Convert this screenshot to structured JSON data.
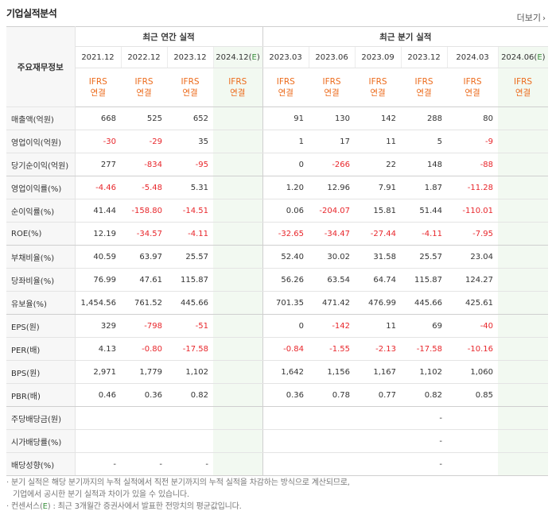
{
  "header": {
    "title": "기업실적분석",
    "more_label": "더보기",
    "more_icon": "chevron-right"
  },
  "table": {
    "row_header_label": "주요재무정보",
    "annual_group_label": "최근 연간 실적",
    "quarter_group_label": "최근 분기 실적",
    "periods": [
      "2021.12",
      "2022.12",
      "2023.12",
      "2024.12(E)",
      "2023.03",
      "2023.06",
      "2023.09",
      "2023.12",
      "2024.03",
      "2024.06(E)"
    ],
    "ifrs_label": "IFRS",
    "basis_label": "연결",
    "rows": [
      {
        "label": "매출액(억원)",
        "values": [
          "668",
          "525",
          "652",
          "",
          "91",
          "130",
          "142",
          "288",
          "80",
          ""
        ]
      },
      {
        "label": "영업이익(억원)",
        "values": [
          "-30",
          "-29",
          "35",
          "",
          "1",
          "17",
          "11",
          "5",
          "-9",
          ""
        ]
      },
      {
        "label": "당기순이익(억원)",
        "values": [
          "277",
          "-834",
          "-95",
          "",
          "0",
          "-266",
          "22",
          "148",
          "-88",
          ""
        ]
      },
      {
        "label": "영업이익률(%)",
        "values": [
          "-4.46",
          "-5.48",
          "5.31",
          "",
          "1.20",
          "12.96",
          "7.91",
          "1.87",
          "-11.28",
          ""
        ]
      },
      {
        "label": "순이익률(%)",
        "values": [
          "41.44",
          "-158.80",
          "-14.51",
          "",
          "0.06",
          "-204.07",
          "15.81",
          "51.44",
          "-110.01",
          ""
        ]
      },
      {
        "label": "ROE(%)",
        "values": [
          "12.19",
          "-34.57",
          "-4.11",
          "",
          "-32.65",
          "-34.47",
          "-27.44",
          "-4.11",
          "-7.95",
          ""
        ]
      },
      {
        "label": "부채비율(%)",
        "values": [
          "40.59",
          "63.97",
          "25.57",
          "",
          "52.40",
          "30.02",
          "31.58",
          "25.57",
          "23.04",
          ""
        ]
      },
      {
        "label": "당좌비율(%)",
        "values": [
          "76.99",
          "47.61",
          "115.87",
          "",
          "56.26",
          "63.54",
          "64.74",
          "115.87",
          "124.27",
          ""
        ]
      },
      {
        "label": "유보율(%)",
        "values": [
          "1,454.56",
          "761.52",
          "445.66",
          "",
          "701.35",
          "471.42",
          "476.99",
          "445.66",
          "425.61",
          ""
        ]
      },
      {
        "label": "EPS(원)",
        "values": [
          "329",
          "-798",
          "-51",
          "",
          "0",
          "-142",
          "11",
          "69",
          "-40",
          ""
        ]
      },
      {
        "label": "PER(배)",
        "values": [
          "4.13",
          "-0.80",
          "-17.58",
          "",
          "-0.84",
          "-1.55",
          "-2.13",
          "-17.58",
          "-10.16",
          ""
        ]
      },
      {
        "label": "BPS(원)",
        "values": [
          "2,971",
          "1,779",
          "1,102",
          "",
          "1,642",
          "1,156",
          "1,167",
          "1,102",
          "1,060",
          ""
        ]
      },
      {
        "label": "PBR(배)",
        "values": [
          "0.46",
          "0.36",
          "0.82",
          "",
          "0.36",
          "0.78",
          "0.77",
          "0.82",
          "0.85",
          ""
        ]
      },
      {
        "label": "주당배당금(원)",
        "values": [
          "",
          "",
          "",
          "",
          "",
          "",
          "",
          "-",
          "",
          ""
        ]
      },
      {
        "label": "시가배당률(%)",
        "values": [
          "",
          "",
          "",
          "",
          "",
          "",
          "",
          "-",
          "",
          ""
        ]
      },
      {
        "label": "배당성향(%)",
        "values": [
          "-",
          "-",
          "-",
          "",
          "",
          "",
          "",
          "-",
          "",
          ""
        ]
      }
    ]
  },
  "notes": {
    "line1": "· 분기 실적은 해당 분기까지의 누적 실적에서 직전 분기까지의 누적 실적을 차감하는 방식으로 계산되므로,",
    "line2": "기업에서 공시한 분기 실적과 차이가 있을 수 있습니다.",
    "line3_prefix": "· 컨센서스(",
    "line3_mark": "E",
    "line3_suffix": ") : 최근 3개월간 증권사에서 발표한 전망치의 평균값입니다."
  },
  "colors": {
    "negative": "#e8262b",
    "ifrs": "#ec6b1c",
    "estimate": "#3b8f3e",
    "estimate_bg": "#f2f9f1"
  }
}
